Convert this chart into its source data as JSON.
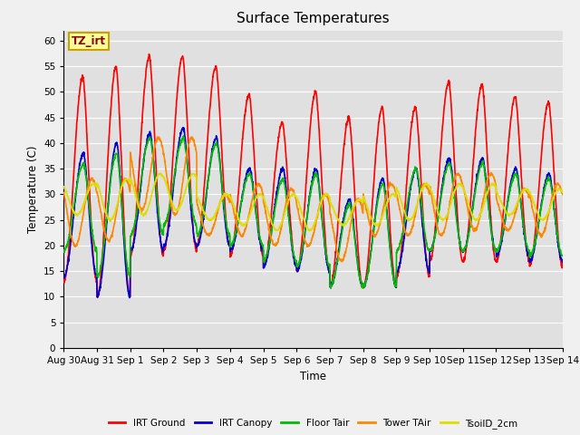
{
  "title": "Surface Temperatures",
  "xlabel": "Time",
  "ylabel": "Temperature (C)",
  "ylim": [
    0,
    62
  ],
  "yticks": [
    0,
    5,
    10,
    15,
    20,
    25,
    30,
    35,
    40,
    45,
    50,
    55,
    60
  ],
  "fig_bg_color": "#f0f0f0",
  "plot_bg_color": "#e0e0e0",
  "annotation_label": "TZ_irt",
  "annotation_bg": "#ffff99",
  "annotation_border": "#c8a000",
  "legend": [
    "IRT Ground",
    "IRT Canopy",
    "Floor Tair",
    "Tower TAir",
    "TsoilD_2cm"
  ],
  "line_colors": [
    "#ff0000",
    "#0000cc",
    "#00bb00",
    "#ff8800",
    "#dddd00"
  ],
  "line_widths": [
    1.2,
    1.2,
    1.2,
    1.2,
    1.2
  ],
  "xtick_labels": [
    "Aug 30",
    "Aug 31",
    "Sep 1",
    "Sep 2",
    "Sep 3",
    "Sep 4",
    "Sep 5",
    "Sep 6",
    "Sep 7",
    "Sep 8",
    "Sep 9",
    "Sep 10",
    "Sep 11",
    "Sep 12",
    "Sep 13",
    "Sep 14"
  ],
  "num_days": 15,
  "points_per_day": 144
}
